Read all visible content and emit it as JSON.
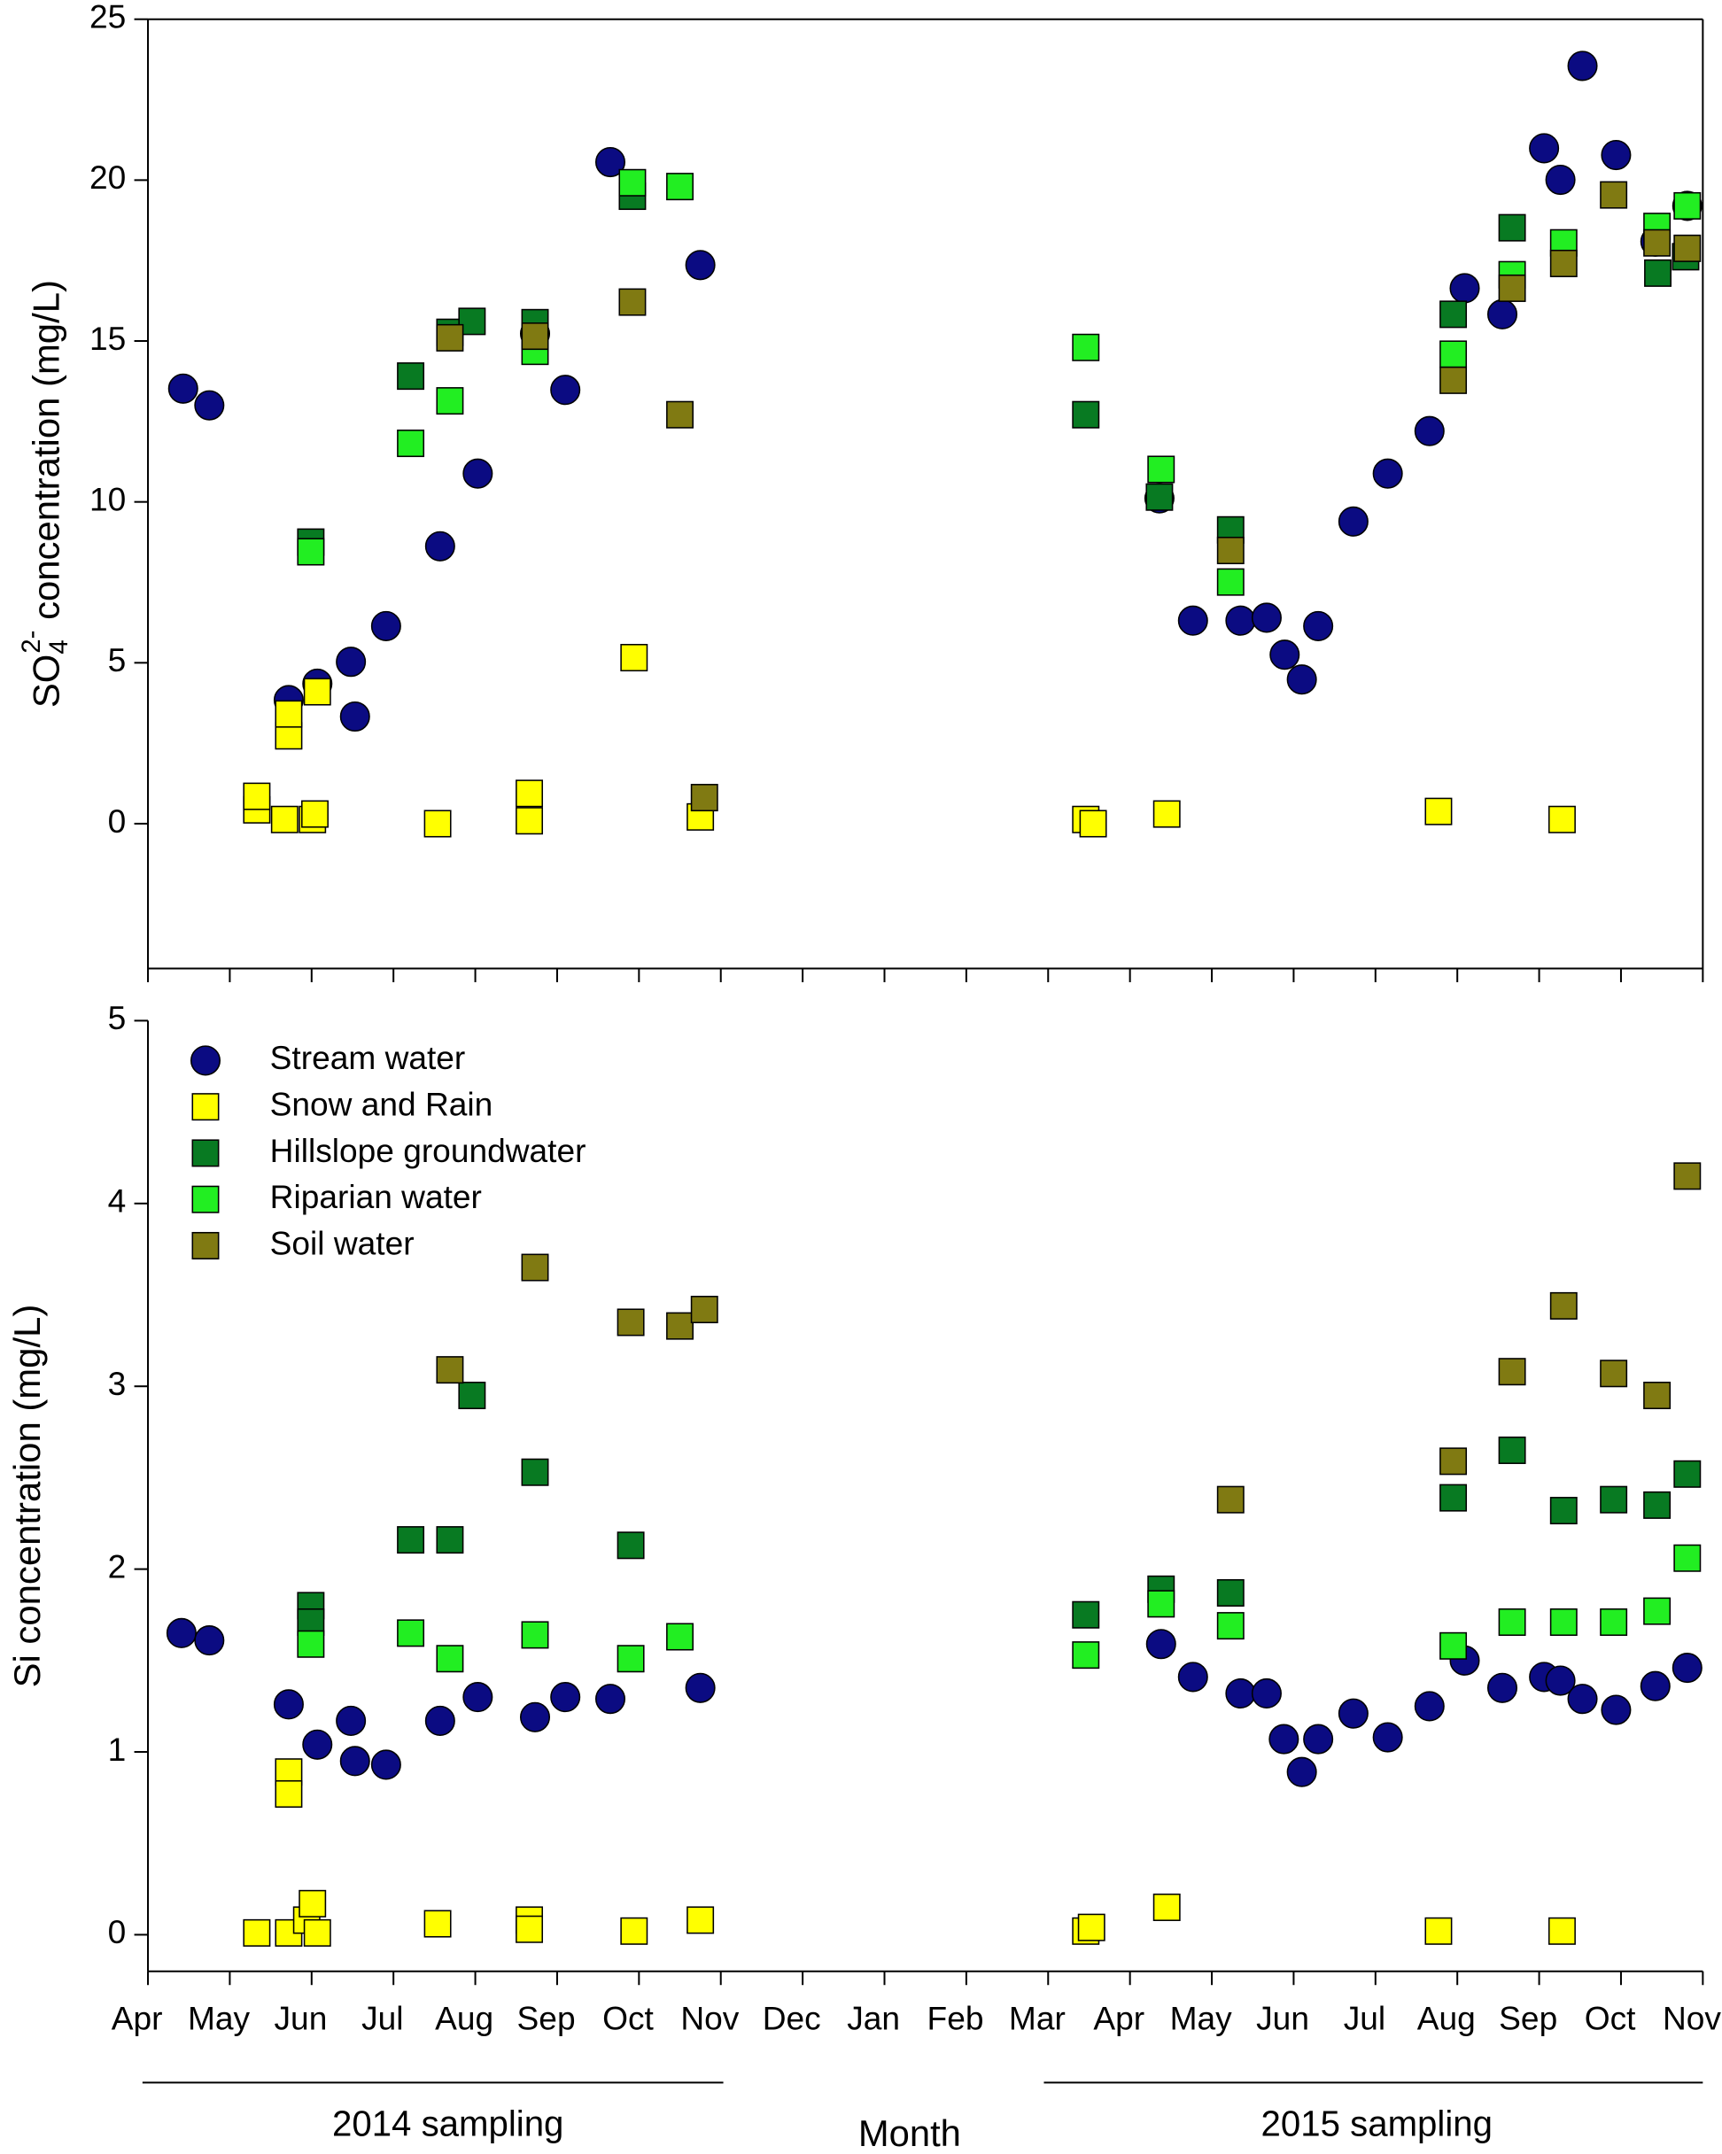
{
  "chart_data": [
    {
      "type": "scatter",
      "y_label": [
        "SO",
        "4",
        "2-",
        " concentration (mg/L)"
      ],
      "xlim": [
        0,
        19
      ],
      "xticks": [
        0,
        1,
        2,
        3,
        4,
        5,
        6,
        7,
        8,
        9,
        10,
        11,
        12,
        13,
        14,
        15,
        16,
        17,
        18,
        19
      ],
      "ylim": [
        -4.5,
        25
      ],
      "yticks": [
        0,
        5,
        10,
        15,
        20,
        25
      ],
      "series": [
        {
          "color": "#0b0b82",
          "marker": "circle",
          "x": [
            0.43,
            0.75,
            1.72,
            2.07,
            2.48,
            2.53,
            2.91,
            3.57,
            4.03,
            4.73,
            5.1,
            5.65,
            6.75,
            12.36,
            12.77,
            13.35,
            13.67,
            13.89,
            14.1,
            14.3,
            14.73,
            15.15,
            15.66,
            16.09,
            16.55,
            17.06,
            17.26,
            17.53,
            17.94,
            18.42,
            18.81
          ],
          "values": [
            13.52,
            13.0,
            3.84,
            4.35,
            5.03,
            3.33,
            6.14,
            8.62,
            10.88,
            15.23,
            13.48,
            20.56,
            17.36,
            10.11,
            6.31,
            6.31,
            6.4,
            5.25,
            4.48,
            6.14,
            9.39,
            10.88,
            12.2,
            16.64,
            15.83,
            20.99,
            20.01,
            23.55,
            20.78,
            18.09,
            19.2
          ]
        },
        {
          "color": "#ffff00",
          "marker": "square",
          "x": [
            1.33,
            1.33,
            1.72,
            1.72,
            1.67,
            2.01,
            2.04,
            2.07,
            3.54,
            4.66,
            4.66,
            5.94,
            6.75,
            11.46,
            11.55,
            12.45,
            15.77,
            17.28
          ],
          "values": [
            0.43,
            0.85,
            2.73,
            3.41,
            0.13,
            0.13,
            0.3,
            4.1,
            0,
            0.09,
            0.94,
            5.16,
            0.21,
            0.13,
            0,
            0.3,
            0.38,
            0.13
          ]
        },
        {
          "color": "#087a22",
          "marker": "square",
          "x": [
            1.99,
            3.21,
            3.69,
            3.96,
            4.73,
            5.92,
            11.46,
            12.36,
            13.23,
            15.95,
            16.67,
            18.45,
            18.79
          ],
          "values": [
            8.75,
            13.91,
            15.27,
            15.61,
            15.57,
            19.5,
            12.71,
            10.15,
            9.13,
            15.83,
            18.52,
            17.11,
            17.62
          ]
        },
        {
          "color": "#22ee22",
          "marker": "square",
          "x": [
            1.99,
            3.21,
            3.69,
            4.73,
            5.92,
            6.5,
            11.46,
            12.38,
            13.23,
            15.95,
            16.67,
            17.3,
            18.44,
            18.81
          ],
          "values": [
            8.45,
            11.82,
            13.14,
            14.68,
            19.92,
            19.8,
            14.8,
            11.01,
            7.51,
            14.59,
            17.06,
            18.05,
            18.56,
            19.2
          ]
        },
        {
          "color": "#807a12",
          "marker": "square",
          "x": [
            3.69,
            4.73,
            5.92,
            6.5,
            6.8,
            13.23,
            15.95,
            16.67,
            17.3,
            17.91,
            18.44,
            18.81
          ],
          "values": [
            15.1,
            15.15,
            16.21,
            12.71,
            0.81,
            8.49,
            13.78,
            16.64,
            17.41,
            19.54,
            18.05,
            17.88
          ]
        }
      ]
    },
    {
      "type": "scatter",
      "y_label": "Si concentration (mg/L)",
      "x_label": "Month",
      "annotations": [
        "2014 sampling",
        "2015 sampling"
      ],
      "xlim": [
        0,
        19
      ],
      "xticks": [
        {
          "value": 0,
          "label": "Apr"
        },
        {
          "value": 1,
          "label": "May"
        },
        {
          "value": 2,
          "label": "Jun"
        },
        {
          "value": 3,
          "label": "Jul"
        },
        {
          "value": 4,
          "label": "Aug"
        },
        {
          "value": 5,
          "label": "Sep"
        },
        {
          "value": 6,
          "label": "Oct"
        },
        {
          "value": 7,
          "label": "Nov"
        },
        {
          "value": 8,
          "label": "Dec"
        },
        {
          "value": 9,
          "label": "Jan"
        },
        {
          "value": 10,
          "label": "Feb"
        },
        {
          "value": 11,
          "label": "Mar"
        },
        {
          "value": 12,
          "label": "Apr"
        },
        {
          "value": 13,
          "label": "May"
        },
        {
          "value": 14,
          "label": "Jun"
        },
        {
          "value": 15,
          "label": "Jul"
        },
        {
          "value": 16,
          "label": "Aug"
        },
        {
          "value": 17,
          "label": "Sep"
        },
        {
          "value": 18,
          "label": "Oct"
        },
        {
          "value": 19,
          "label": "Nov"
        }
      ],
      "ylim": [
        -0.2,
        5
      ],
      "yticks": [
        0,
        1,
        2,
        3,
        4,
        5
      ],
      "series": [
        {
          "name": "Stream water",
          "color": "#0b0b82",
          "marker": "circle",
          "x": [
            0.41,
            0.75,
            1.72,
            2.07,
            2.48,
            2.53,
            2.91,
            3.57,
            4.03,
            4.73,
            5.1,
            5.65,
            6.75,
            12.38,
            12.77,
            13.35,
            13.67,
            13.88,
            14.1,
            14.3,
            14.73,
            15.15,
            15.66,
            16.09,
            16.55,
            17.06,
            17.26,
            17.53,
            17.94,
            18.42,
            18.81
          ],
          "values": [
            1.65,
            1.61,
            1.26,
            1.04,
            1.17,
            0.95,
            0.93,
            1.17,
            1.3,
            1.19,
            1.3,
            1.29,
            1.35,
            1.59,
            1.41,
            1.32,
            1.32,
            1.07,
            0.89,
            1.07,
            1.21,
            1.08,
            1.25,
            1.5,
            1.35,
            1.41,
            1.39,
            1.29,
            1.23,
            1.36,
            1.46
          ]
        },
        {
          "name": "Snow and Rain",
          "color": "#ffff00",
          "marker": "square",
          "x": [
            1.33,
            1.72,
            1.72,
            1.72,
            1.94,
            2.01,
            2.07,
            3.54,
            4.66,
            4.66,
            5.94,
            6.75,
            11.46,
            11.53,
            12.45,
            15.77,
            17.28
          ],
          "values": [
            0.01,
            0.01,
            0.89,
            0.77,
            0.08,
            0.17,
            0.01,
            0.06,
            0.08,
            0.03,
            0.02,
            0.08,
            0.02,
            0.04,
            0.15,
            0.02,
            0.02
          ]
        },
        {
          "name": "Hillslope groundwater",
          "color": "#087a22",
          "marker": "square",
          "x": [
            1.99,
            1.99,
            3.21,
            3.69,
            3.96,
            4.73,
            5.9,
            11.46,
            12.38,
            13.23,
            15.95,
            16.67,
            17.3,
            17.91,
            18.44,
            18.81
          ],
          "values": [
            1.8,
            1.71,
            2.16,
            2.16,
            2.95,
            2.53,
            2.13,
            1.75,
            1.89,
            1.87,
            2.39,
            2.65,
            2.32,
            2.38,
            2.35,
            2.52
          ]
        },
        {
          "name": "Riparian water",
          "color": "#22ee22",
          "marker": "square",
          "x": [
            1.99,
            3.21,
            3.69,
            4.73,
            5.9,
            6.5,
            11.46,
            12.38,
            13.23,
            15.95,
            16.67,
            17.3,
            17.91,
            18.44,
            18.81
          ],
          "values": [
            1.59,
            1.65,
            1.51,
            1.64,
            1.51,
            1.63,
            1.53,
            1.81,
            1.69,
            1.58,
            1.71,
            1.71,
            1.71,
            1.77,
            2.06
          ]
        },
        {
          "name": "Soil water",
          "color": "#807a12",
          "marker": "square",
          "x": [
            3.69,
            4.73,
            5.9,
            6.5,
            6.8,
            13.23,
            15.95,
            16.67,
            17.3,
            17.91,
            18.44,
            18.81
          ],
          "values": [
            3.09,
            3.65,
            3.35,
            3.33,
            3.42,
            2.38,
            2.59,
            3.08,
            3.44,
            3.07,
            2.95,
            4.15
          ]
        }
      ]
    }
  ]
}
